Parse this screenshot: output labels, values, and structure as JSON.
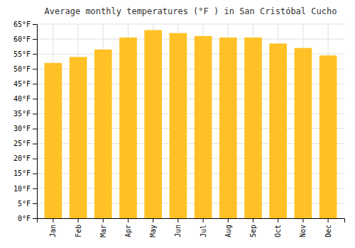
{
  "chart_data": {
    "type": "bar",
    "title": "Average monthly temperatures (°F ) in San Cristóbal Cucho",
    "categories": [
      "Jan",
      "Feb",
      "Mar",
      "Apr",
      "May",
      "Jun",
      "Jul",
      "Aug",
      "Sep",
      "Oct",
      "Nov",
      "Dec"
    ],
    "values": [
      52,
      54,
      56.5,
      60.5,
      63,
      62,
      61,
      60.5,
      60.5,
      58.5,
      57,
      54.5
    ],
    "color": "#FFC125",
    "ylim": [
      0,
      65
    ],
    "yticks": [
      {
        "value": 0,
        "label": "0°F"
      },
      {
        "value": 5,
        "label": "5°F"
      },
      {
        "value": 10,
        "label": "10°F"
      },
      {
        "value": 15,
        "label": "15°F"
      },
      {
        "value": 20,
        "label": "20°F"
      },
      {
        "value": 25,
        "label": "25°F"
      },
      {
        "value": 30,
        "label": "30°F"
      },
      {
        "value": 35,
        "label": "35°F"
      },
      {
        "value": 40,
        "label": "40°F"
      },
      {
        "value": 45,
        "label": "45°F"
      },
      {
        "value": 50,
        "label": "50°F"
      },
      {
        "value": 55,
        "label": "55°F"
      },
      {
        "value": 60,
        "label": "60°F"
      },
      {
        "value": 65,
        "label": "65°F"
      }
    ],
    "grid": true
  }
}
